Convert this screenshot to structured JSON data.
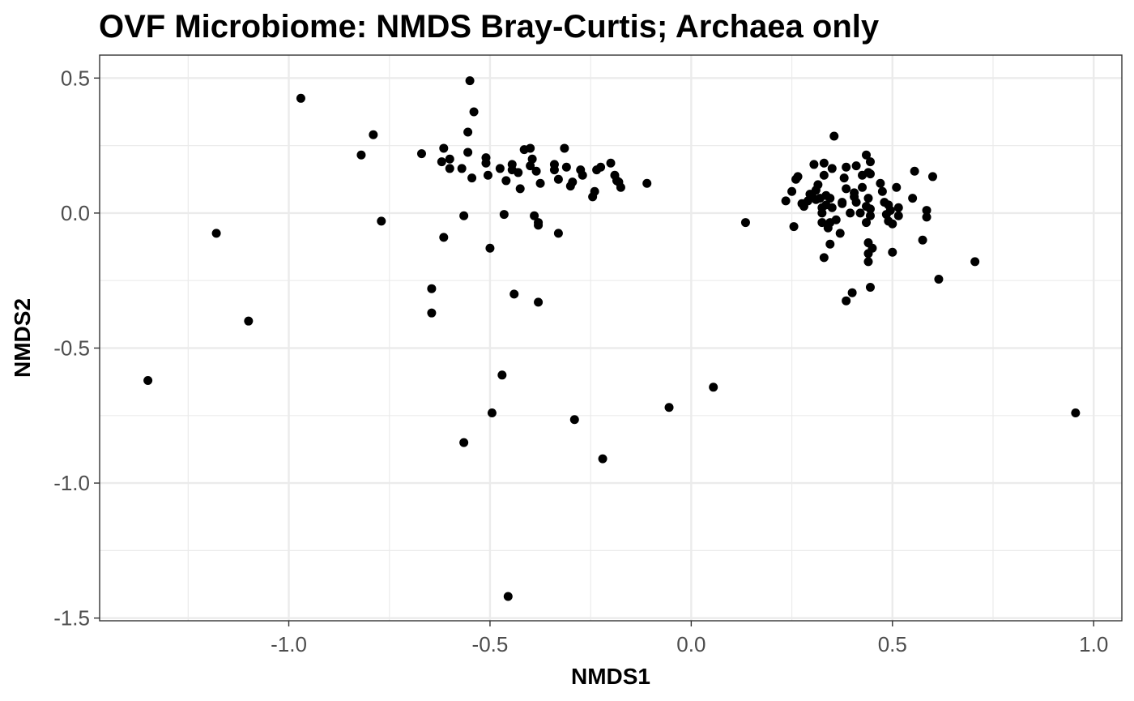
{
  "chart_data": {
    "type": "scatter",
    "title": "OVF Microbiome: NMDS Bray-Curtis; Archaea only",
    "xlabel": "NMDS1",
    "ylabel": "NMDS2",
    "xlim": [
      -1.47,
      1.07
    ],
    "ylim": [
      -1.51,
      0.585
    ],
    "x_ticks": [
      -1.0,
      -0.5,
      0.0,
      0.5,
      1.0
    ],
    "x_tick_labels": [
      "-1.0",
      "-0.5",
      "0.0",
      "0.5",
      "1.0"
    ],
    "y_ticks": [
      0.5,
      0.0,
      -0.5,
      -1.0,
      -1.5
    ],
    "y_tick_labels": [
      "0.5",
      "0.0",
      "-0.5",
      "-1.0",
      "-1.5"
    ],
    "grid": true,
    "legend": "none",
    "point_color": "#000000",
    "points": [
      [
        -1.35,
        -0.62
      ],
      [
        -1.18,
        -0.075
      ],
      [
        -1.1,
        -0.4
      ],
      [
        -0.97,
        0.425
      ],
      [
        -0.82,
        0.215
      ],
      [
        -0.79,
        0.29
      ],
      [
        -0.77,
        -0.03
      ],
      [
        -0.67,
        0.22
      ],
      [
        -0.645,
        -0.28
      ],
      [
        -0.645,
        -0.37
      ],
      [
        -0.62,
        0.19
      ],
      [
        -0.615,
        0.24
      ],
      [
        -0.615,
        -0.09
      ],
      [
        -0.6,
        0.2
      ],
      [
        -0.6,
        0.165
      ],
      [
        -0.57,
        0.165
      ],
      [
        -0.565,
        -0.01
      ],
      [
        -0.565,
        -0.85
      ],
      [
        -0.555,
        0.225
      ],
      [
        -0.555,
        0.3
      ],
      [
        -0.55,
        0.49
      ],
      [
        -0.545,
        0.13
      ],
      [
        -0.54,
        0.375
      ],
      [
        -0.51,
        0.205
      ],
      [
        -0.51,
        0.185
      ],
      [
        -0.505,
        0.14
      ],
      [
        -0.5,
        -0.13
      ],
      [
        -0.495,
        -0.74
      ],
      [
        -0.475,
        0.165
      ],
      [
        -0.47,
        -0.6
      ],
      [
        -0.465,
        -0.005
      ],
      [
        -0.46,
        0.12
      ],
      [
        -0.455,
        -1.42
      ],
      [
        -0.445,
        0.18
      ],
      [
        -0.445,
        0.16
      ],
      [
        -0.44,
        -0.3
      ],
      [
        -0.43,
        0.15
      ],
      [
        -0.425,
        0.09
      ],
      [
        -0.415,
        0.235
      ],
      [
        -0.4,
        0.24
      ],
      [
        -0.4,
        0.175
      ],
      [
        -0.395,
        0.2
      ],
      [
        -0.39,
        -0.01
      ],
      [
        -0.385,
        0.155
      ],
      [
        -0.38,
        -0.035
      ],
      [
        -0.38,
        -0.045
      ],
      [
        -0.38,
        -0.33
      ],
      [
        -0.375,
        0.11
      ],
      [
        -0.34,
        0.18
      ],
      [
        -0.34,
        0.16
      ],
      [
        -0.33,
        0.125
      ],
      [
        -0.33,
        -0.075
      ],
      [
        -0.315,
        0.24
      ],
      [
        -0.31,
        0.17
      ],
      [
        -0.3,
        0.1
      ],
      [
        -0.295,
        0.115
      ],
      [
        -0.29,
        -0.765
      ],
      [
        -0.275,
        0.16
      ],
      [
        -0.27,
        0.14
      ],
      [
        -0.245,
        0.06
      ],
      [
        -0.24,
        0.08
      ],
      [
        -0.235,
        0.16
      ],
      [
        -0.225,
        0.17
      ],
      [
        -0.22,
        -0.91
      ],
      [
        -0.2,
        0.185
      ],
      [
        -0.19,
        0.14
      ],
      [
        -0.185,
        0.12
      ],
      [
        -0.18,
        0.115
      ],
      [
        -0.175,
        0.095
      ],
      [
        -0.11,
        0.11
      ],
      [
        -0.055,
        -0.72
      ],
      [
        0.055,
        -0.645
      ],
      [
        0.135,
        -0.035
      ],
      [
        0.235,
        0.045
      ],
      [
        0.25,
        0.08
      ],
      [
        0.255,
        -0.05
      ],
      [
        0.26,
        0.125
      ],
      [
        0.265,
        0.135
      ],
      [
        0.275,
        0.035
      ],
      [
        0.28,
        0.025
      ],
      [
        0.29,
        0.045
      ],
      [
        0.295,
        0.07
      ],
      [
        0.3,
        0.07
      ],
      [
        0.305,
        0.18
      ],
      [
        0.31,
        0.085
      ],
      [
        0.31,
        0.05
      ],
      [
        0.315,
        0.105
      ],
      [
        0.32,
        0.055
      ],
      [
        0.325,
        0.0
      ],
      [
        0.325,
        0.02
      ],
      [
        0.325,
        -0.035
      ],
      [
        0.33,
        0.14
      ],
      [
        0.33,
        0.185
      ],
      [
        0.33,
        -0.165
      ],
      [
        0.335,
        0.065
      ],
      [
        0.335,
        0.03
      ],
      [
        0.34,
        -0.055
      ],
      [
        0.345,
        0.055
      ],
      [
        0.345,
        -0.035
      ],
      [
        0.345,
        -0.115
      ],
      [
        0.35,
        0.165
      ],
      [
        0.35,
        0.02
      ],
      [
        0.355,
        0.285
      ],
      [
        0.36,
        -0.025
      ],
      [
        0.37,
        -0.075
      ],
      [
        0.375,
        0.04
      ],
      [
        0.375,
        0.035
      ],
      [
        0.38,
        0.13
      ],
      [
        0.385,
        0.09
      ],
      [
        0.385,
        0.17
      ],
      [
        0.385,
        -0.325
      ],
      [
        0.395,
        0.0
      ],
      [
        0.4,
        -0.295
      ],
      [
        0.405,
        0.075
      ],
      [
        0.405,
        0.06
      ],
      [
        0.41,
        0.04
      ],
      [
        0.41,
        0.175
      ],
      [
        0.42,
        0.0
      ],
      [
        0.425,
        0.095
      ],
      [
        0.425,
        0.14
      ],
      [
        0.435,
        0.215
      ],
      [
        0.435,
        0.025
      ],
      [
        0.435,
        -0.035
      ],
      [
        0.44,
        0.15
      ],
      [
        0.44,
        0.055
      ],
      [
        0.44,
        -0.11
      ],
      [
        0.44,
        -0.15
      ],
      [
        0.44,
        -0.18
      ],
      [
        0.445,
        0.19
      ],
      [
        0.445,
        0.145
      ],
      [
        0.445,
        0.015
      ],
      [
        0.445,
        -0.01
      ],
      [
        0.445,
        -0.275
      ],
      [
        0.45,
        -0.13
      ],
      [
        0.47,
        0.11
      ],
      [
        0.475,
        0.08
      ],
      [
        0.48,
        0.04
      ],
      [
        0.485,
        -0.005
      ],
      [
        0.49,
        0.03
      ],
      [
        0.49,
        -0.03
      ],
      [
        0.495,
        0.01
      ],
      [
        0.5,
        -0.04
      ],
      [
        0.5,
        -0.145
      ],
      [
        0.51,
        0.095
      ],
      [
        0.515,
        0.02
      ],
      [
        0.515,
        -0.01
      ],
      [
        0.55,
        0.055
      ],
      [
        0.555,
        0.155
      ],
      [
        0.575,
        -0.1
      ],
      [
        0.585,
        0.01
      ],
      [
        0.585,
        -0.015
      ],
      [
        0.6,
        0.135
      ],
      [
        0.615,
        -0.245
      ],
      [
        0.705,
        -0.18
      ],
      [
        0.955,
        -0.74
      ]
    ]
  }
}
